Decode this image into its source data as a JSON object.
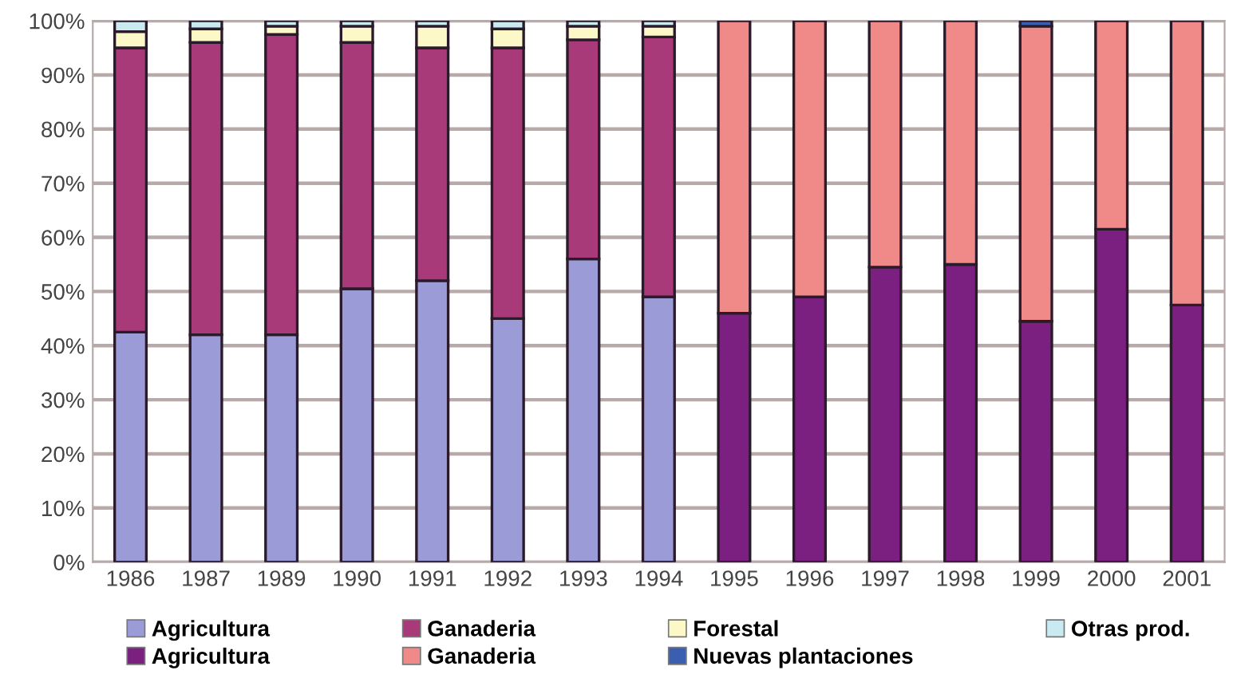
{
  "chart_data": {
    "type": "bar",
    "stacked": true,
    "categories": [
      "1986",
      "1987",
      "1989",
      "1990",
      "1991",
      "1992",
      "1993",
      "1994",
      "1995",
      "1996",
      "1997",
      "1998",
      "1999",
      "2000",
      "2001"
    ],
    "series": [
      {
        "name": "Agricultura",
        "color": "#9b9bd8",
        "values": [
          42.5,
          42,
          42,
          50.5,
          52,
          45,
          56,
          49,
          null,
          null,
          null,
          null,
          null,
          null,
          null
        ]
      },
      {
        "name": "Ganaderia",
        "color": "#a83a7a",
        "values": [
          52.5,
          54,
          55.5,
          45.5,
          43,
          50,
          40.5,
          48,
          null,
          null,
          null,
          null,
          null,
          null,
          null
        ]
      },
      {
        "name": "Forestal",
        "color": "#fdf8c8",
        "values": [
          3,
          2.5,
          1.5,
          3,
          4,
          3.5,
          2.5,
          2,
          null,
          null,
          null,
          null,
          null,
          null,
          null
        ]
      },
      {
        "name": "Otras prod.",
        "color": "#c8eaf0",
        "values": [
          2,
          1.5,
          1,
          1,
          1,
          1.5,
          1,
          1,
          null,
          null,
          null,
          null,
          null,
          null,
          null
        ]
      },
      {
        "name": "Agricultura",
        "color": "#7b1f80",
        "values": [
          null,
          null,
          null,
          null,
          null,
          null,
          null,
          null,
          46,
          49,
          54.5,
          55,
          44.5,
          61.5,
          47.5
        ]
      },
      {
        "name": "Ganaderia",
        "color": "#f08a88",
        "values": [
          null,
          null,
          null,
          null,
          null,
          null,
          null,
          null,
          54,
          51,
          45.5,
          45,
          54.5,
          38.5,
          52.5
        ]
      },
      {
        "name": "Nuevas plantaciones",
        "color": "#3a5fb0",
        "values": [
          null,
          null,
          null,
          null,
          null,
          null,
          null,
          null,
          null,
          null,
          null,
          null,
          1,
          null,
          null
        ]
      }
    ],
    "ylim": [
      0,
      100
    ],
    "yticks": [
      {
        "value": 0,
        "label": "0%"
      },
      {
        "value": 10,
        "label": "10%"
      },
      {
        "value": 20,
        "label": "20%"
      },
      {
        "value": 30,
        "label": "30%"
      },
      {
        "value": 40,
        "label": "40%"
      },
      {
        "value": 50,
        "label": "50%"
      },
      {
        "value": 60,
        "label": "60%"
      },
      {
        "value": 70,
        "label": "70%"
      },
      {
        "value": 80,
        "label": "80%"
      },
      {
        "value": 90,
        "label": "90%"
      },
      {
        "value": 100,
        "label": "100%"
      }
    ],
    "grid": "y",
    "legend": "bottom"
  }
}
